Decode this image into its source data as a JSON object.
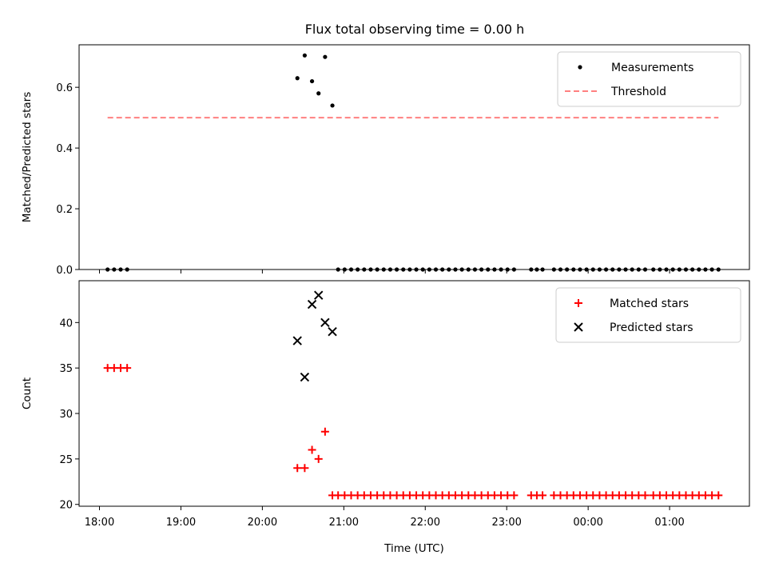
{
  "title": "Flux total observing time = 0.00 h",
  "colors": {
    "measurement": "#000000",
    "threshold": "#ff8080",
    "matched": "#ff0000",
    "predicted": "#000000",
    "legend_border": "#cccccc"
  },
  "chart_data": [
    {
      "type": "scatter",
      "panel": "top",
      "ylabel": "Matched/Predicted stars",
      "xlabel": "",
      "xlim": [
        17.75,
        25.98
      ],
      "ylim": [
        0,
        0.74
      ],
      "yticks": [
        0.0,
        0.2,
        0.4,
        0.6
      ],
      "ytick_labels": [
        "0.0",
        "0.2",
        "0.4",
        "0.6"
      ],
      "xtick_labels_visible": false,
      "grid": false,
      "legend_position": "top-right",
      "series": [
        {
          "name": "Measurements",
          "marker": "dot",
          "points": [
            {
              "x": 18.1,
              "y": 0
            },
            {
              "x": 18.18,
              "y": 0
            },
            {
              "x": 18.26,
              "y": 0
            },
            {
              "x": 18.34,
              "y": 0
            },
            {
              "x": 20.43,
              "y": 0.63
            },
            {
              "x": 20.52,
              "y": 0.705
            },
            {
              "x": 20.61,
              "y": 0.62
            },
            {
              "x": 20.69,
              "y": 0.58
            },
            {
              "x": 20.77,
              "y": 0.7
            },
            {
              "x": 20.86,
              "y": 0.54
            },
            {
              "x": 20.93,
              "y": 0
            },
            {
              "x": 21.01,
              "y": 0
            },
            {
              "x": 21.09,
              "y": 0
            },
            {
              "x": 21.17,
              "y": 0
            },
            {
              "x": 21.25,
              "y": 0
            },
            {
              "x": 21.33,
              "y": 0
            },
            {
              "x": 21.41,
              "y": 0
            },
            {
              "x": 21.49,
              "y": 0
            },
            {
              "x": 21.57,
              "y": 0
            },
            {
              "x": 21.65,
              "y": 0
            },
            {
              "x": 21.73,
              "y": 0
            },
            {
              "x": 21.81,
              "y": 0
            },
            {
              "x": 21.89,
              "y": 0
            },
            {
              "x": 21.97,
              "y": 0
            },
            {
              "x": 22.05,
              "y": 0
            },
            {
              "x": 22.13,
              "y": 0
            },
            {
              "x": 22.21,
              "y": 0
            },
            {
              "x": 22.29,
              "y": 0
            },
            {
              "x": 22.37,
              "y": 0
            },
            {
              "x": 22.45,
              "y": 0
            },
            {
              "x": 22.53,
              "y": 0
            },
            {
              "x": 22.61,
              "y": 0
            },
            {
              "x": 22.69,
              "y": 0
            },
            {
              "x": 22.77,
              "y": 0
            },
            {
              "x": 22.85,
              "y": 0
            },
            {
              "x": 22.93,
              "y": 0
            },
            {
              "x": 23.01,
              "y": 0
            },
            {
              "x": 23.09,
              "y": 0
            },
            {
              "x": 23.3,
              "y": 0
            },
            {
              "x": 23.37,
              "y": 0
            },
            {
              "x": 23.44,
              "y": 0
            },
            {
              "x": 23.58,
              "y": 0
            },
            {
              "x": 23.66,
              "y": 0
            },
            {
              "x": 23.74,
              "y": 0
            },
            {
              "x": 23.82,
              "y": 0
            },
            {
              "x": 23.9,
              "y": 0
            },
            {
              "x": 23.98,
              "y": 0
            },
            {
              "x": 24.06,
              "y": 0
            },
            {
              "x": 24.14,
              "y": 0
            },
            {
              "x": 24.22,
              "y": 0
            },
            {
              "x": 24.3,
              "y": 0
            },
            {
              "x": 24.38,
              "y": 0
            },
            {
              "x": 24.46,
              "y": 0
            },
            {
              "x": 24.54,
              "y": 0
            },
            {
              "x": 24.62,
              "y": 0
            },
            {
              "x": 24.7,
              "y": 0
            },
            {
              "x": 24.8,
              "y": 0
            },
            {
              "x": 24.88,
              "y": 0
            },
            {
              "x": 24.96,
              "y": 0
            },
            {
              "x": 25.04,
              "y": 0
            },
            {
              "x": 25.12,
              "y": 0
            },
            {
              "x": 25.2,
              "y": 0
            },
            {
              "x": 25.28,
              "y": 0
            },
            {
              "x": 25.36,
              "y": 0
            },
            {
              "x": 25.44,
              "y": 0
            },
            {
              "x": 25.52,
              "y": 0
            },
            {
              "x": 25.6,
              "y": 0
            }
          ]
        },
        {
          "name": "Threshold",
          "marker": "dashed-line",
          "points": [
            {
              "x": 18.1,
              "y": 0.5
            },
            {
              "x": 25.6,
              "y": 0.5
            }
          ]
        }
      ]
    },
    {
      "type": "scatter",
      "panel": "bottom",
      "xlabel": "Time (UTC)",
      "ylabel": "Count",
      "xlim": [
        17.75,
        25.98
      ],
      "ylim": [
        19.8,
        44.6
      ],
      "yticks": [
        20,
        25,
        30,
        35,
        40
      ],
      "ytick_labels": [
        "20",
        "25",
        "30",
        "35",
        "40"
      ],
      "xticks": [
        18,
        19,
        20,
        21,
        22,
        23,
        24,
        25
      ],
      "xtick_labels": [
        "18:00",
        "19:00",
        "20:00",
        "21:00",
        "22:00",
        "23:00",
        "00:00",
        "01:00"
      ],
      "grid": false,
      "legend_position": "top-right",
      "series": [
        {
          "name": "Matched stars",
          "marker": "plus",
          "points": [
            {
              "x": 18.1,
              "y": 35
            },
            {
              "x": 18.18,
              "y": 35
            },
            {
              "x": 18.26,
              "y": 35
            },
            {
              "x": 18.34,
              "y": 35
            },
            {
              "x": 20.43,
              "y": 24
            },
            {
              "x": 20.52,
              "y": 24
            },
            {
              "x": 20.61,
              "y": 26
            },
            {
              "x": 20.69,
              "y": 25
            },
            {
              "x": 20.77,
              "y": 28
            },
            {
              "x": 20.86,
              "y": 21
            },
            {
              "x": 20.93,
              "y": 21
            },
            {
              "x": 21.01,
              "y": 21
            },
            {
              "x": 21.09,
              "y": 21
            },
            {
              "x": 21.17,
              "y": 21
            },
            {
              "x": 21.25,
              "y": 21
            },
            {
              "x": 21.33,
              "y": 21
            },
            {
              "x": 21.41,
              "y": 21
            },
            {
              "x": 21.49,
              "y": 21
            },
            {
              "x": 21.57,
              "y": 21
            },
            {
              "x": 21.65,
              "y": 21
            },
            {
              "x": 21.73,
              "y": 21
            },
            {
              "x": 21.81,
              "y": 21
            },
            {
              "x": 21.89,
              "y": 21
            },
            {
              "x": 21.97,
              "y": 21
            },
            {
              "x": 22.05,
              "y": 21
            },
            {
              "x": 22.13,
              "y": 21
            },
            {
              "x": 22.21,
              "y": 21
            },
            {
              "x": 22.29,
              "y": 21
            },
            {
              "x": 22.37,
              "y": 21
            },
            {
              "x": 22.45,
              "y": 21
            },
            {
              "x": 22.53,
              "y": 21
            },
            {
              "x": 22.61,
              "y": 21
            },
            {
              "x": 22.69,
              "y": 21
            },
            {
              "x": 22.77,
              "y": 21
            },
            {
              "x": 22.85,
              "y": 21
            },
            {
              "x": 22.93,
              "y": 21
            },
            {
              "x": 23.01,
              "y": 21
            },
            {
              "x": 23.09,
              "y": 21
            },
            {
              "x": 23.3,
              "y": 21
            },
            {
              "x": 23.37,
              "y": 21
            },
            {
              "x": 23.44,
              "y": 21
            },
            {
              "x": 23.58,
              "y": 21
            },
            {
              "x": 23.66,
              "y": 21
            },
            {
              "x": 23.74,
              "y": 21
            },
            {
              "x": 23.82,
              "y": 21
            },
            {
              "x": 23.9,
              "y": 21
            },
            {
              "x": 23.98,
              "y": 21
            },
            {
              "x": 24.06,
              "y": 21
            },
            {
              "x": 24.14,
              "y": 21
            },
            {
              "x": 24.22,
              "y": 21
            },
            {
              "x": 24.3,
              "y": 21
            },
            {
              "x": 24.38,
              "y": 21
            },
            {
              "x": 24.46,
              "y": 21
            },
            {
              "x": 24.54,
              "y": 21
            },
            {
              "x": 24.62,
              "y": 21
            },
            {
              "x": 24.7,
              "y": 21
            },
            {
              "x": 24.8,
              "y": 21
            },
            {
              "x": 24.88,
              "y": 21
            },
            {
              "x": 24.96,
              "y": 21
            },
            {
              "x": 25.04,
              "y": 21
            },
            {
              "x": 25.12,
              "y": 21
            },
            {
              "x": 25.2,
              "y": 21
            },
            {
              "x": 25.28,
              "y": 21
            },
            {
              "x": 25.36,
              "y": 21
            },
            {
              "x": 25.44,
              "y": 21
            },
            {
              "x": 25.52,
              "y": 21
            },
            {
              "x": 25.6,
              "y": 21
            }
          ]
        },
        {
          "name": "Predicted stars",
          "marker": "x",
          "points": [
            {
              "x": 20.43,
              "y": 38
            },
            {
              "x": 20.52,
              "y": 34
            },
            {
              "x": 20.61,
              "y": 42
            },
            {
              "x": 20.69,
              "y": 43
            },
            {
              "x": 20.77,
              "y": 40
            },
            {
              "x": 20.86,
              "y": 39
            }
          ]
        }
      ]
    }
  ]
}
